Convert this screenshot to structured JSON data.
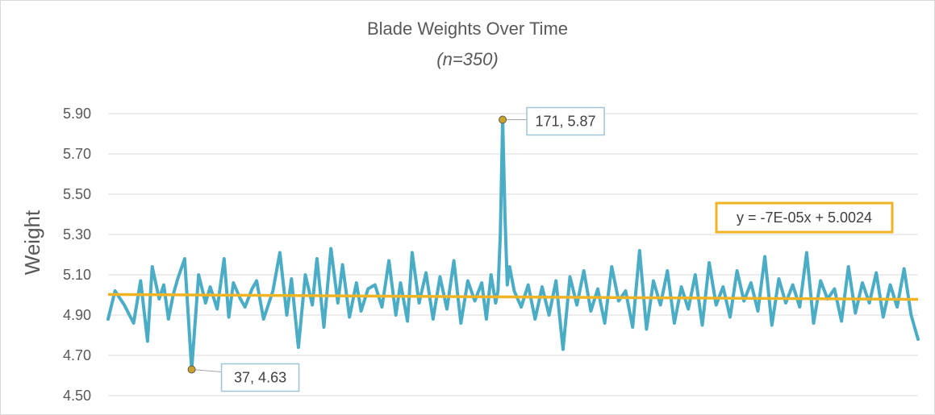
{
  "chart_data": {
    "type": "line",
    "title": "Blade Weights Over Time",
    "subtitle": "(n=350)",
    "xlabel": "",
    "ylabel": "Weight",
    "xlim": [
      1,
      350
    ],
    "ylim": [
      4.5,
      5.95
    ],
    "yticks": [
      "4.50",
      "4.70",
      "4.90",
      "5.10",
      "5.30",
      "5.50",
      "5.70",
      "5.90"
    ],
    "grid": true,
    "legend": "none",
    "series": [
      {
        "x": [
          1,
          4,
          8,
          12,
          15,
          18,
          20,
          23,
          25,
          27,
          29,
          31,
          34,
          37,
          40,
          43,
          45,
          48,
          51,
          53,
          55,
          58,
          60,
          63,
          65,
          68,
          72,
          75,
          78,
          80,
          83,
          86,
          89,
          91,
          94,
          97,
          100,
          102,
          105,
          108,
          110,
          113,
          116,
          119,
          122,
          125,
          127,
          130,
          132,
          135,
          138,
          141,
          144,
          147,
          150,
          153,
          156,
          159,
          162,
          164,
          166,
          168,
          169,
          170,
          171,
          172,
          173,
          174,
          176,
          179,
          182,
          185,
          188,
          191,
          194,
          197,
          200,
          203,
          206,
          209,
          212,
          215,
          218,
          221,
          224,
          227,
          230,
          233,
          236,
          239,
          242,
          245,
          248,
          251,
          254,
          257,
          260,
          263,
          266,
          269,
          272,
          275,
          278,
          281,
          284,
          287,
          290,
          293,
          296,
          299,
          302,
          305,
          308,
          311,
          314,
          317,
          320,
          323,
          326,
          329,
          332,
          335,
          338,
          341,
          344,
          347,
          350
        ],
        "y": [
          4.88,
          5.02,
          4.95,
          4.86,
          5.07,
          4.77,
          5.14,
          4.98,
          5.05,
          4.88,
          5.0,
          5.08,
          5.18,
          4.63,
          5.1,
          4.96,
          5.04,
          4.93,
          5.18,
          4.89,
          5.06,
          4.98,
          4.94,
          5.03,
          5.07,
          4.88,
          5.02,
          5.21,
          4.9,
          5.08,
          4.74,
          5.1,
          4.95,
          5.18,
          4.84,
          5.23,
          4.96,
          5.15,
          4.89,
          5.06,
          4.92,
          5.03,
          5.05,
          4.94,
          5.17,
          4.9,
          5.06,
          4.87,
          5.21,
          4.96,
          5.11,
          4.88,
          5.09,
          4.93,
          5.17,
          4.86,
          5.07,
          4.97,
          5.06,
          4.88,
          5.1,
          4.96,
          5.02,
          5.3,
          5.87,
          5.4,
          5.05,
          5.14,
          5.02,
          4.94,
          5.05,
          4.88,
          5.04,
          4.9,
          5.07,
          4.73,
          5.09,
          4.95,
          5.12,
          4.92,
          5.03,
          4.86,
          5.14,
          4.97,
          5.02,
          4.84,
          5.22,
          4.83,
          5.07,
          4.95,
          5.12,
          4.86,
          5.04,
          4.93,
          5.1,
          4.85,
          5.16,
          4.95,
          5.04,
          4.89,
          5.12,
          4.97,
          5.06,
          4.92,
          5.19,
          4.85,
          5.08,
          4.96,
          5.05,
          4.94,
          5.21,
          4.86,
          5.07,
          4.98,
          5.03,
          4.87,
          5.14,
          4.91,
          5.06,
          4.96,
          5.11,
          4.89,
          5.05,
          4.94,
          5.13,
          4.9,
          4.78
        ]
      }
    ],
    "trendline": {
      "slope": -7e-05,
      "intercept": 5.0024,
      "label": "y = -7E-05x + 5.0024"
    },
    "annotations": [
      {
        "x": 171,
        "y": 5.87,
        "label": "171, 5.87"
      },
      {
        "x": 37,
        "y": 4.63,
        "label": "37, 4.63"
      }
    ],
    "colors": {
      "series": "#4bacc6",
      "trendline": "#f0b323",
      "grid": "#d9d9d9",
      "callout_border": "#9fc5d3",
      "marker": "#c9a227"
    }
  }
}
